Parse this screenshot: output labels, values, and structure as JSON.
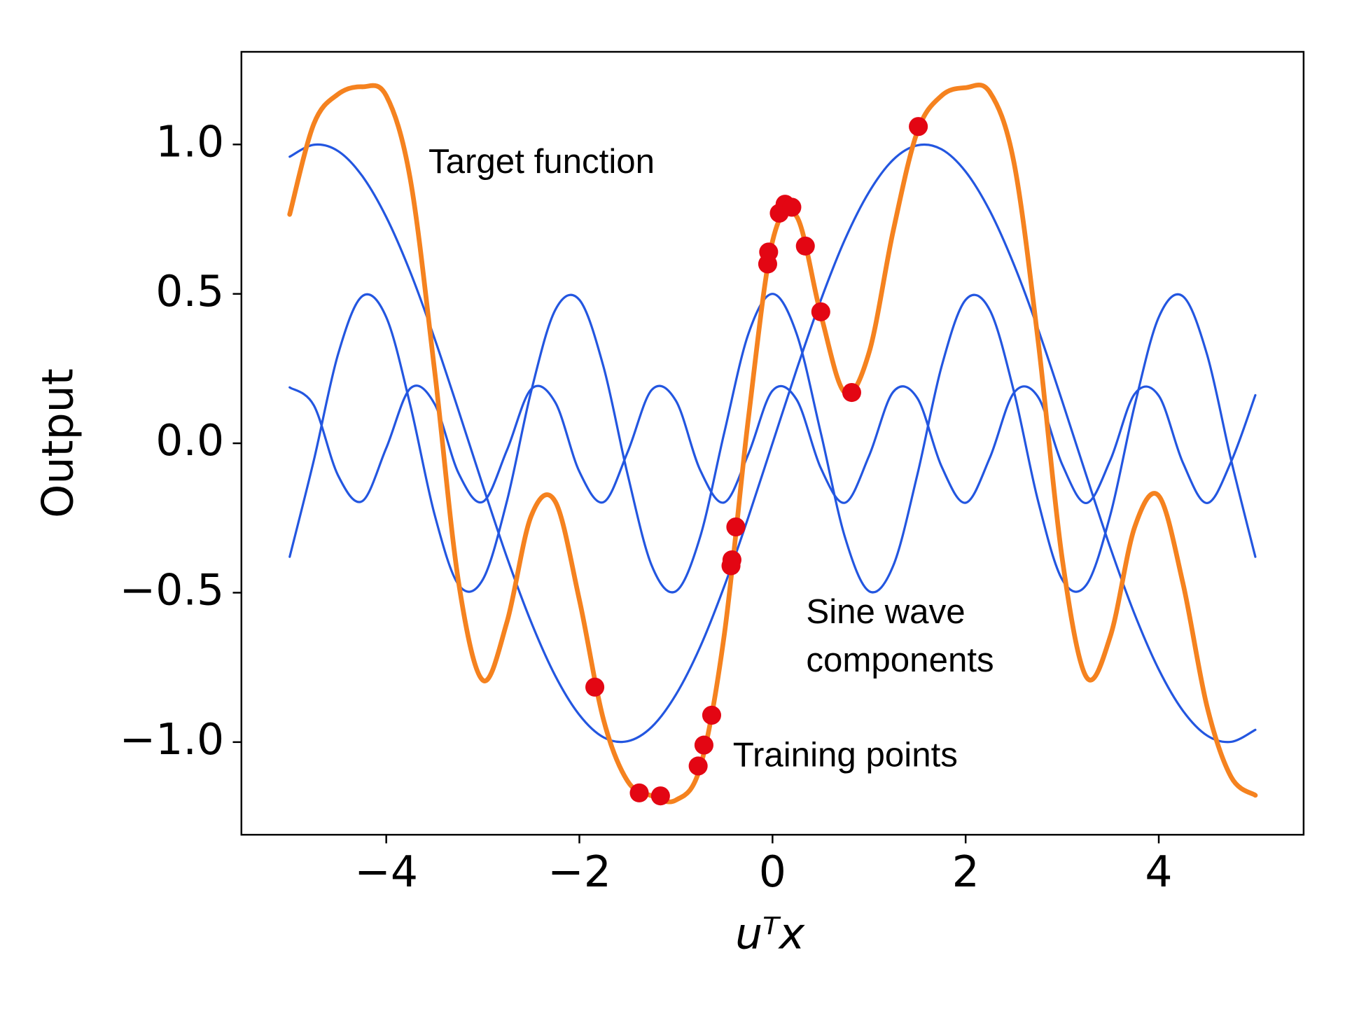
{
  "chart_data": {
    "type": "line",
    "xlabel": "uᵀx",
    "ylabel": "Output",
    "xlim": [
      -5.5,
      5.5
    ],
    "ylim": [
      -1.31,
      1.31
    ],
    "xticks": [
      {
        "value": -4,
        "label": "−4"
      },
      {
        "value": -2,
        "label": "−2"
      },
      {
        "value": 0,
        "label": "0"
      },
      {
        "value": 2,
        "label": "2"
      },
      {
        "value": 4,
        "label": "4"
      }
    ],
    "yticks": [
      {
        "value": -1.0,
        "label": "−1.0"
      },
      {
        "value": -0.5,
        "label": "−0.5"
      },
      {
        "value": 0.0,
        "label": "0.0"
      },
      {
        "value": 0.5,
        "label": "0.5"
      },
      {
        "value": 1.0,
        "label": "1.0"
      }
    ],
    "grid": false,
    "x": [
      -5,
      -4.75,
      -4.5,
      -4.25,
      -4,
      -3.75,
      -3.5,
      -3.25,
      -3,
      -2.75,
      -2.5,
      -2.25,
      -2,
      -1.75,
      -1.5,
      -1.25,
      -1,
      -0.75,
      -0.5,
      -0.25,
      0,
      0.25,
      0.5,
      0.75,
      1,
      1.25,
      1.5,
      1.75,
      2,
      2.25,
      2.5,
      2.75,
      3,
      3.25,
      3.5,
      3.75,
      4,
      4.25,
      4.5,
      4.75,
      5
    ],
    "series": [
      {
        "color": "#2356e0",
        "values": [
          0.959,
          0.999,
          0.978,
          0.895,
          0.757,
          0.572,
          0.351,
          0.108,
          -0.141,
          -0.382,
          -0.598,
          -0.778,
          -0.909,
          -0.984,
          -0.997,
          -0.949,
          -0.841,
          -0.682,
          -0.479,
          -0.247,
          0,
          0.247,
          0.479,
          0.682,
          0.841,
          0.949,
          0.997,
          0.984,
          0.909,
          0.778,
          0.598,
          0.382,
          0.141,
          -0.108,
          -0.351,
          -0.572,
          -0.757,
          -0.895,
          -0.978,
          -0.999,
          -0.959
        ]
      },
      {
        "color": "#2356e0",
        "values": [
          -0.38,
          -0.057,
          0.297,
          0.492,
          0.422,
          0.126,
          -0.238,
          -0.474,
          -0.456,
          -0.193,
          0.173,
          0.446,
          0.48,
          0.256,
          -0.105,
          -0.41,
          -0.495,
          -0.314,
          0.035,
          0.366,
          0.5,
          0.366,
          0.035,
          -0.314,
          -0.495,
          -0.41,
          -0.105,
          0.256,
          0.48,
          0.446,
          0.173,
          -0.193,
          -0.456,
          -0.474,
          -0.238,
          0.126,
          0.422,
          0.492,
          0.297,
          -0.057,
          -0.38
        ]
      },
      {
        "color": "#2356e0",
        "values": [
          0.187,
          0.127,
          -0.107,
          -0.194,
          -0.016,
          0.184,
          0.132,
          -0.101,
          -0.196,
          -0.023,
          0.181,
          0.137,
          -0.095,
          -0.197,
          -0.029,
          0.179,
          0.142,
          -0.089,
          -0.198,
          -0.036,
          0.176,
          0.146,
          -0.083,
          -0.199,
          -0.042,
          0.172,
          0.151,
          -0.077,
          -0.199,
          -0.049,
          0.169,
          0.155,
          -0.071,
          -0.2,
          -0.055,
          0.165,
          0.159,
          -0.065,
          -0.2,
          -0.061,
          0.161
        ]
      },
      {
        "name": "Target function",
        "color": "#f5821f",
        "values": [
          0.766,
          1.069,
          1.168,
          1.193,
          1.163,
          0.882,
          0.245,
          -0.467,
          -0.793,
          -0.598,
          -0.244,
          -0.195,
          -0.524,
          -0.925,
          -1.131,
          -1.18,
          -1.194,
          -1.085,
          -0.642,
          0.083,
          0.676,
          0.759,
          0.431,
          0.169,
          0.304,
          0.711,
          1.043,
          1.163,
          1.19,
          1.175,
          0.94,
          0.344,
          -0.386,
          -0.782,
          -0.644,
          -0.281,
          -0.176,
          -0.468,
          -0.881,
          -1.117,
          -1.178
        ]
      }
    ],
    "points": {
      "name": "Training points",
      "color": "#e30613",
      "x": [
        -1.84,
        -1.38,
        -1.16,
        -0.77,
        -0.71,
        -0.63,
        -0.43,
        -0.42,
        -0.38,
        -0.05,
        -0.04,
        0.07,
        0.13,
        0.2,
        0.34,
        0.5,
        0.82,
        1.51
      ],
      "y": [
        -0.816,
        -1.17,
        -1.18,
        -1.08,
        -1.01,
        -0.91,
        -0.41,
        -0.39,
        -0.28,
        0.6,
        0.64,
        0.77,
        0.8,
        0.79,
        0.66,
        0.44,
        0.17,
        1.06
      ]
    },
    "components_label": {
      "lines": [
        "Sine wave",
        "components"
      ],
      "color": "#4a6fe0"
    }
  }
}
